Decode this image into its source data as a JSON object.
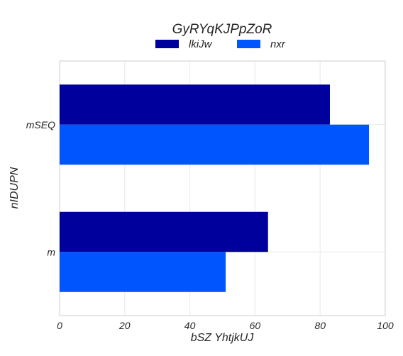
{
  "chart_data": {
    "type": "bar",
    "orientation": "horizontal",
    "title": "GyRYqKJPpZoR",
    "xlabel": "bSZ YhtjkUJ",
    "ylabel": "nIDUPN",
    "categories": [
      "mSEQ",
      "m"
    ],
    "series": [
      {
        "name": "lkiJw",
        "values": [
          83,
          64
        ],
        "color": "#00009c"
      },
      {
        "name": "nxr",
        "values": [
          95,
          51
        ],
        "color": "#0055ff"
      }
    ],
    "xlim": [
      0,
      100
    ],
    "xticks": [
      "0",
      "20",
      "40",
      "60",
      "80",
      "100"
    ],
    "grid": true,
    "legend_position": "top-center"
  }
}
